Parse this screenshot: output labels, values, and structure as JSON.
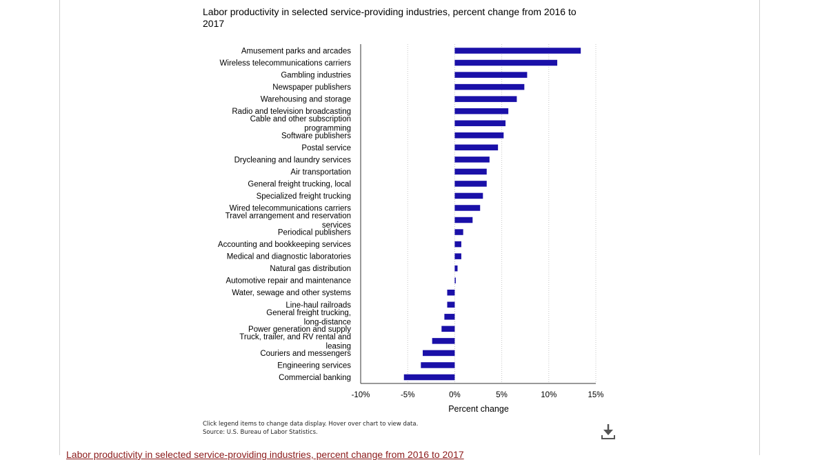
{
  "chart_data": {
    "type": "bar",
    "orientation": "horizontal",
    "title": "Labor productivity in selected service-providing industries, percent change from 2016 to 2017",
    "xlabel": "Percent change",
    "ylabel": "",
    "xlim": [
      -10,
      15
    ],
    "x_ticks": [
      "-10%",
      "-5%",
      "0%",
      "5%",
      "10%",
      "15%"
    ],
    "x_tick_values": [
      -10,
      -5,
      0,
      5,
      10,
      15
    ],
    "grid": "vertical dotted",
    "bar_color": "#1a10a8",
    "categories": [
      "Amusement parks and arcades",
      "Wireless telecommunications carriers",
      "Gambling industries",
      "Newspaper publishers",
      "Warehousing and storage",
      "Radio and television broadcasting",
      "Cable and other subscription programming",
      "Software publishers",
      "Postal service",
      "Drycleaning and laundry services",
      "Air transportation",
      "General freight trucking, local",
      "Specialized freight trucking",
      "Wired telecommunications carriers",
      "Travel arrangement and reservation services",
      "Periodical publishers",
      "Accounting and bookkeeping services",
      "Medical and diagnostic laboratories",
      "Natural gas distribution",
      "Automotive repair and maintenance",
      "Water, sewage and other systems",
      "Line-haul railroads",
      "General freight trucking, long-distance",
      "Power generation and supply",
      "Truck, trailer, and RV rental and leasing",
      "Couriers and messengers",
      "Engineering services",
      "Commercial banking"
    ],
    "values": [
      13.4,
      10.9,
      7.7,
      7.4,
      6.6,
      5.7,
      5.4,
      5.2,
      4.6,
      3.7,
      3.4,
      3.4,
      3.0,
      2.7,
      1.9,
      0.9,
      0.7,
      0.7,
      0.3,
      0.1,
      -0.8,
      -0.8,
      -1.1,
      -1.4,
      -2.4,
      -3.4,
      -3.6,
      -5.4
    ]
  },
  "footnote": {
    "line1": "Click legend items to change data display. Hover over chart to view data.",
    "line2": "Source: U.S. Bureau of Labor Statistics."
  },
  "download": {
    "icon": "download-icon"
  },
  "bottom_link": {
    "text": "Labor productivity in selected service-providing industries, percent change from 2016 to 2017"
  }
}
